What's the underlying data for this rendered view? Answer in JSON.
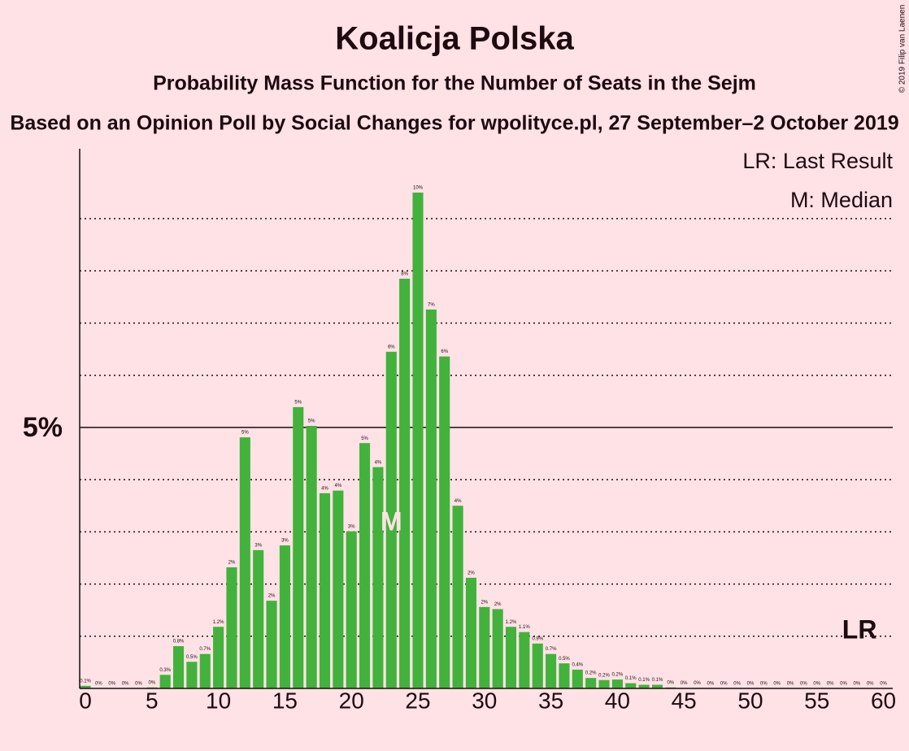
{
  "chart_data": {
    "type": "bar",
    "title": "Koalicja Polska",
    "subtitle": "Probability Mass Function for the Number of Seats in the Sejm",
    "caption": "Based on an Opinion Poll by Social Changes for wpolityce.pl, 27 September–2 October 2019",
    "copyright": "© 2019 Filip van Laenen",
    "legend": [
      "LR: Last Result",
      "M: Median"
    ],
    "color": "#42b23c",
    "x": [
      0,
      1,
      2,
      3,
      4,
      5,
      6,
      7,
      8,
      9,
      10,
      11,
      12,
      13,
      14,
      15,
      16,
      17,
      18,
      19,
      20,
      21,
      22,
      23,
      24,
      25,
      26,
      27,
      28,
      29,
      30,
      31,
      32,
      33,
      34,
      35,
      36,
      37,
      38,
      39,
      40,
      41,
      42,
      43,
      44,
      45,
      46,
      47,
      48,
      49,
      50,
      51,
      52,
      53,
      54,
      55,
      56,
      57,
      58,
      59,
      60
    ],
    "values": [
      0.05,
      0,
      0,
      0,
      0,
      0.02,
      0.26,
      0.81,
      0.51,
      0.66,
      1.18,
      2.32,
      4.81,
      2.65,
      1.68,
      2.74,
      5.39,
      5.03,
      3.74,
      3.79,
      3.01,
      4.7,
      4.24,
      6.45,
      7.85,
      9.5,
      7.26,
      6.36,
      3.5,
      2.12,
      1.56,
      1.52,
      1.18,
      1.08,
      0.86,
      0.66,
      0.48,
      0.36,
      0.2,
      0.16,
      0.17,
      0.1,
      0.07,
      0.07,
      0.02,
      0.01,
      0.01,
      0,
      0,
      0,
      0,
      0,
      0,
      0,
      0,
      0,
      0,
      0,
      0,
      0,
      0
    ],
    "value_labels": [
      "0.1%",
      "0%",
      "0%",
      "0%",
      "0%",
      "0%",
      "0.3%",
      "0.8%",
      "0.5%",
      "0.7%",
      "1.2%",
      "2%",
      "5%",
      "3%",
      "2%",
      "3%",
      "5%",
      "5%",
      "4%",
      "4%",
      "3%",
      "5%",
      "4%",
      "6%",
      "8%",
      "10%",
      "7%",
      "6%",
      "4%",
      "2%",
      "2%",
      "2%",
      "1.2%",
      "1.1%",
      "0.9%",
      "0.7%",
      "0.5%",
      "0.4%",
      "0.2%",
      "0.2%",
      "0.2%",
      "0.1%",
      "0.1%",
      "0.1%",
      "0%",
      "0%",
      "0%",
      "0%",
      "0%",
      "0%",
      "0%",
      "0%",
      "0%",
      "0%",
      "0%",
      "0%",
      "0%",
      "0%",
      "0%",
      "0%",
      "0%"
    ],
    "xlim": [
      -0.43,
      60.7
    ],
    "xticks": [
      0,
      5,
      10,
      15,
      20,
      25,
      30,
      35,
      40,
      45,
      50,
      55,
      60
    ],
    "ylim": [
      0,
      10.34
    ],
    "yticks": [
      {
        "value": 5,
        "label": "5%"
      }
    ],
    "minor_gridlines": [
      1,
      2,
      3,
      4,
      6,
      7,
      8,
      9
    ],
    "median": {
      "label": "M",
      "x": 23
    },
    "last_result": {
      "label": "LR",
      "x": 58.2
    }
  }
}
